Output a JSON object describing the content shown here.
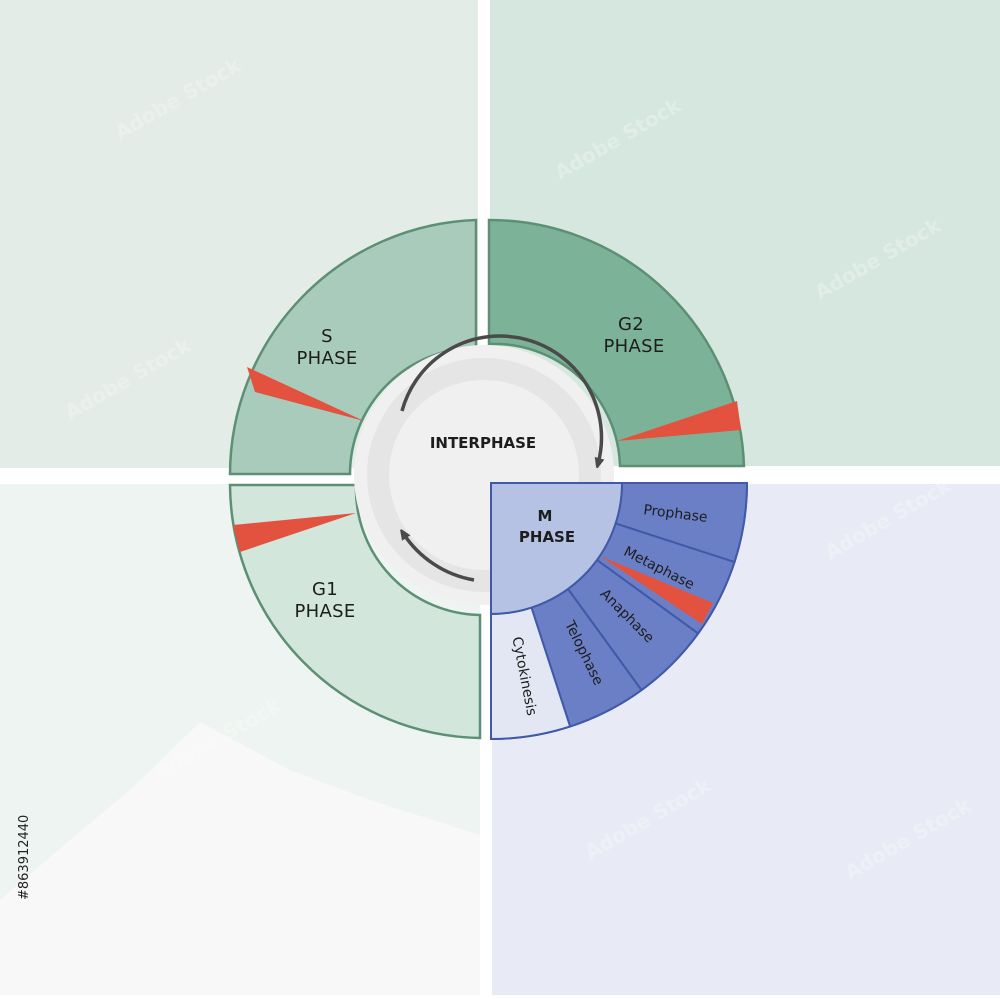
{
  "colors": {
    "bg_top_left": "#e3ece7",
    "bg_top_right": "#d6e7df",
    "bg_bottom_left": "#eef4f1",
    "bg_bottom_right": "#e8ebf5",
    "s_phase_fill": "#a9cbbb",
    "g2_phase_fill": "#7cb398",
    "g1_phase_fill": "#d2e6dc",
    "ring_stroke": "#5c8f73",
    "checkpoint_red": "#e3523f",
    "center_fill": "#f0f0f0",
    "m_center_fill": "#b6c2e3",
    "m_segment_fill": "#6b7fc6",
    "m_stroke": "#4059a8",
    "cytokinesis_fill": "#e3e7f3",
    "arrow_color": "#4a4a4a"
  },
  "diagram": {
    "interphase_label": "INTERPHASE",
    "s_phase": {
      "line1": "S",
      "line2": "PHASE"
    },
    "g2_phase": {
      "line1": "G2",
      "line2": "PHASE"
    },
    "g1_phase": {
      "line1": "G1",
      "line2": "PHASE"
    },
    "m_phase": {
      "line1": "M",
      "line2": "PHASE"
    },
    "m_subphases": [
      "Prophase",
      "Metaphase",
      "Anaphase",
      "Telophase",
      "Cytokinesis"
    ]
  },
  "watermark": {
    "stock_id": "#863912440",
    "text": "Adobe Stock"
  }
}
